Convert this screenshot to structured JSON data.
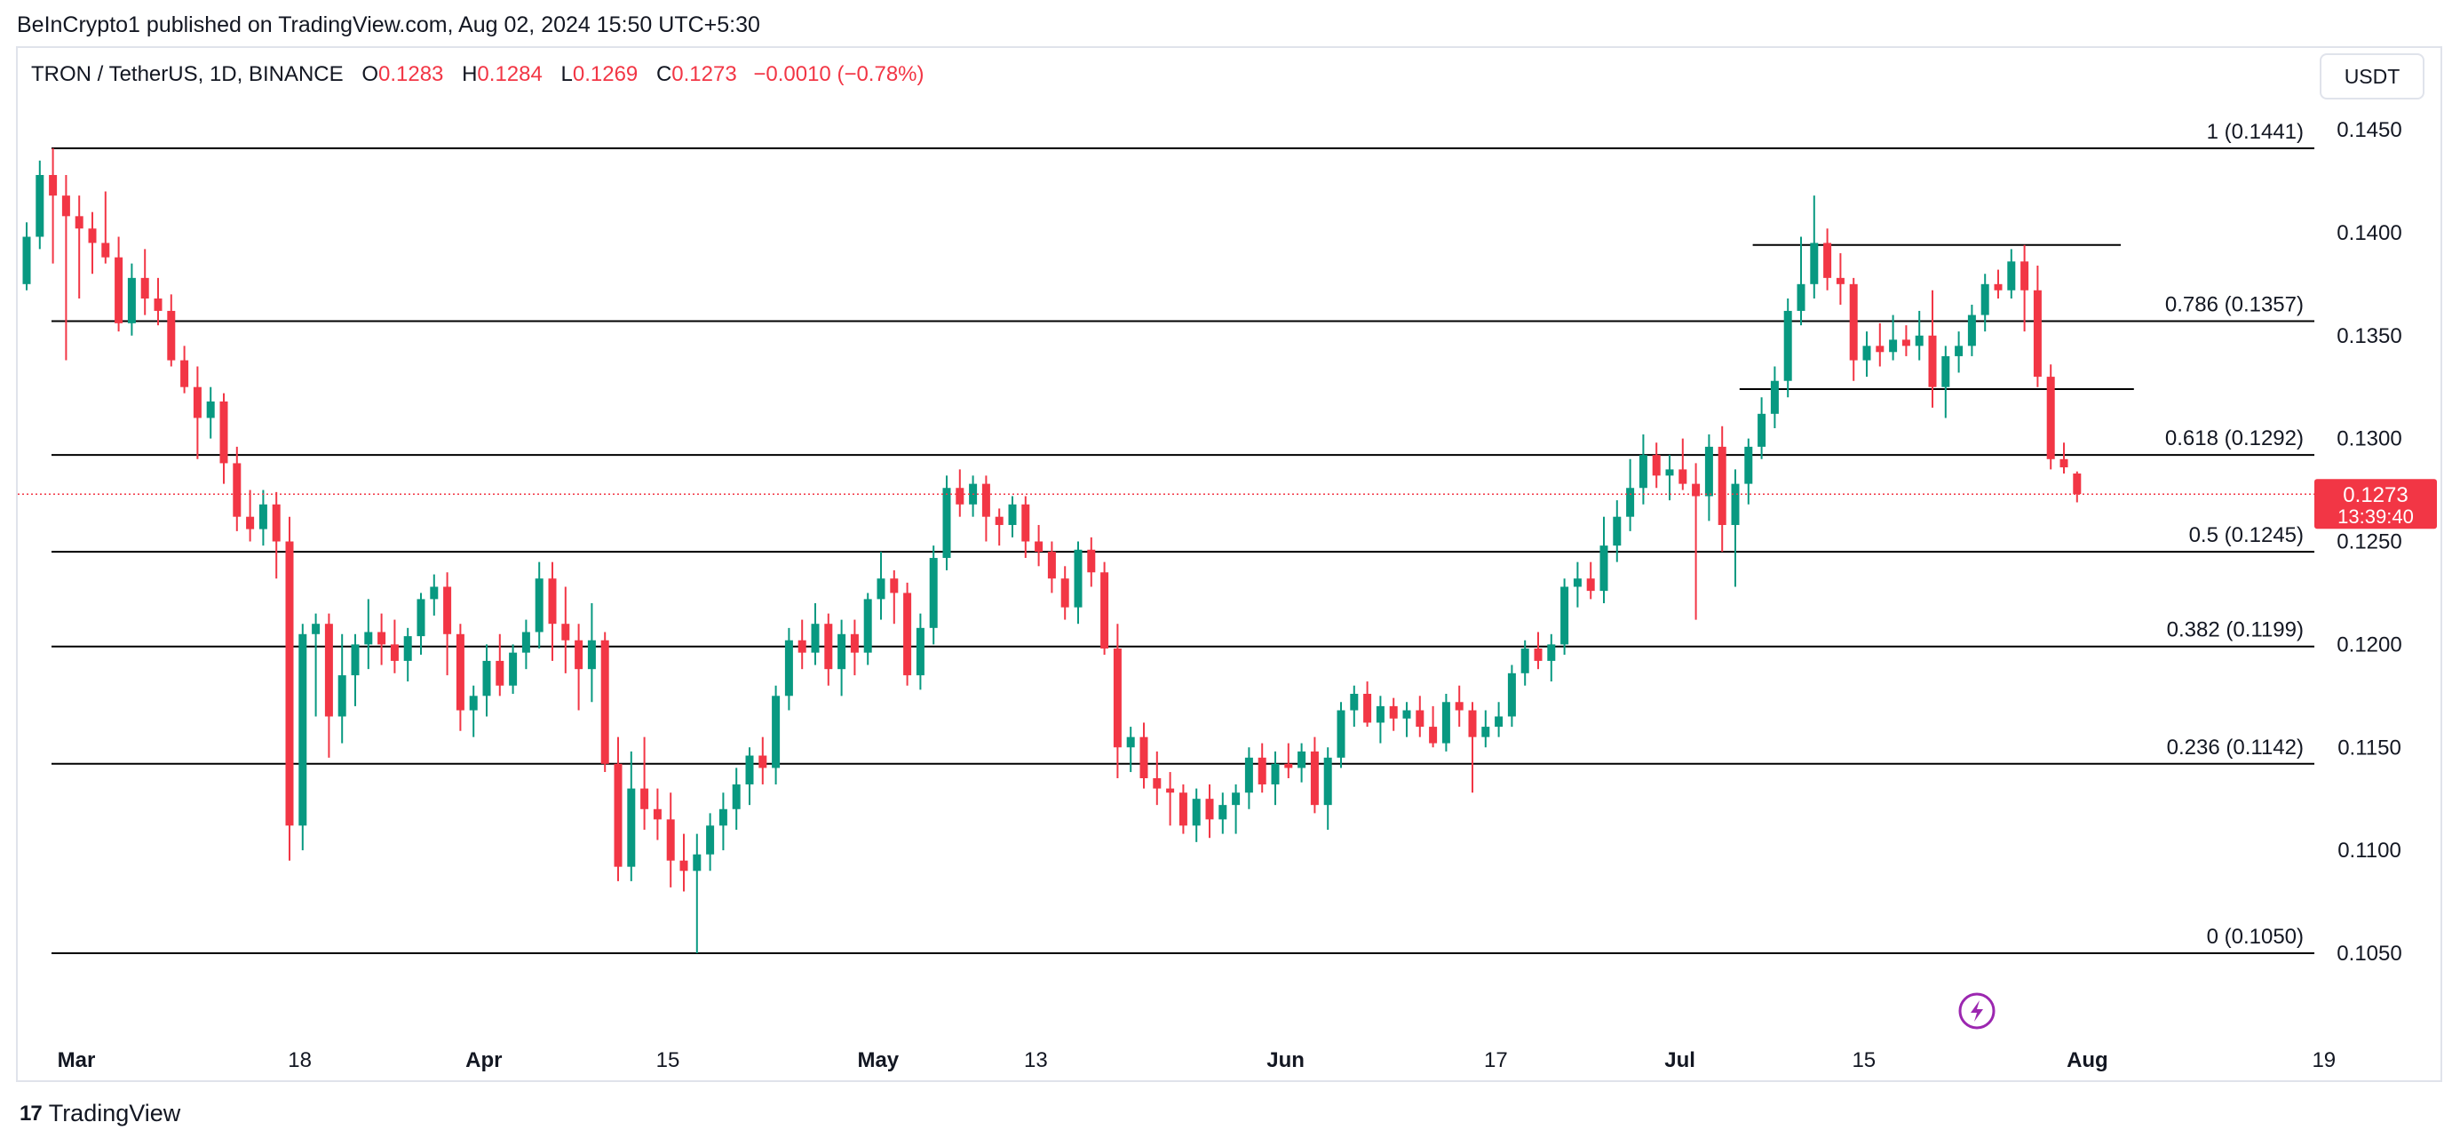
{
  "header": {
    "published_line": "BeInCrypto1 published on TradingView.com, Aug 02, 2024 15:50 UTC+5:30"
  },
  "legend": {
    "symbol": "TRON / TetherUS, 1D, BINANCE",
    "open_label": "O",
    "open": "0.1283",
    "high_label": "H",
    "high": "0.1284",
    "low_label": "L",
    "low": "0.1269",
    "close_label": "C",
    "close": "0.1273",
    "change": "−0.0010 (−0.78%)"
  },
  "currency_button": "USDT",
  "footer": {
    "brand": "TradingView",
    "logo_mark": "17"
  },
  "colors": {
    "up": "#089981",
    "down": "#f23645",
    "grid": "#000000",
    "axis_text": "#131722",
    "price_badge": "#f23645",
    "event_icon": "#9c27b0"
  },
  "chart_data": {
    "type": "candlestick",
    "title": "TRON / TetherUS, 1D, BINANCE",
    "ylim": [
      0.1,
      0.147
    ],
    "y_ticks": [
      "0.1450",
      "0.1400",
      "0.1350",
      "0.1300",
      "0.1250",
      "0.1200",
      "0.1150",
      "0.1100",
      "0.1050"
    ],
    "y_tick_values": [
      0.145,
      0.14,
      0.135,
      0.13,
      0.125,
      0.12,
      0.115,
      0.11,
      0.105
    ],
    "x_ticks": [
      {
        "label": "Mar",
        "day": 0,
        "bold": true
      },
      {
        "label": "18",
        "day": 17,
        "bold": false
      },
      {
        "label": "Apr",
        "day": 31,
        "bold": true
      },
      {
        "label": "15",
        "day": 45,
        "bold": false
      },
      {
        "label": "May",
        "day": 61,
        "bold": true
      },
      {
        "label": "13",
        "day": 73,
        "bold": false
      },
      {
        "label": "Jun",
        "day": 92,
        "bold": true
      },
      {
        "label": "17",
        "day": 108,
        "bold": false
      },
      {
        "label": "Jul",
        "day": 122,
        "bold": true
      },
      {
        "label": "15",
        "day": 136,
        "bold": false
      },
      {
        "label": "Aug",
        "day": 153,
        "bold": true
      },
      {
        "label": "19",
        "day": 171,
        "bold": false
      }
    ],
    "fib_levels": [
      {
        "label": "1 (0.1441)",
        "value": 0.1441
      },
      {
        "label": "0.786 (0.1357)",
        "value": 0.1357
      },
      {
        "label": "0.618 (0.1292)",
        "value": 0.1292
      },
      {
        "label": "0.5 (0.1245)",
        "value": 0.1245
      },
      {
        "label": "0.382 (0.1199)",
        "value": 0.1199
      },
      {
        "label": "0.236 (0.1142)",
        "value": 0.1142
      },
      {
        "label": "0 (0.1050)",
        "value": 0.105
      }
    ],
    "range_lines": [
      {
        "value": 0.1394,
        "start_day": 132,
        "end_day": 160
      },
      {
        "value": 0.1324,
        "start_day": 131,
        "end_day": 161
      }
    ],
    "last_price": {
      "value": 0.1273,
      "label": "0.1273",
      "countdown": "13:39:40"
    },
    "candles": [
      [
        0.1375,
        0.1405,
        0.1372,
        0.1398
      ],
      [
        0.1398,
        0.1435,
        0.1392,
        0.1428
      ],
      [
        0.1428,
        0.1441,
        0.1385,
        0.1418
      ],
      [
        0.1418,
        0.1428,
        0.1338,
        0.1408
      ],
      [
        0.1408,
        0.1418,
        0.1368,
        0.1402
      ],
      [
        0.1402,
        0.141,
        0.138,
        0.1395
      ],
      [
        0.1395,
        0.142,
        0.1385,
        0.1388
      ],
      [
        0.1388,
        0.1398,
        0.1352,
        0.1356
      ],
      [
        0.1356,
        0.1385,
        0.135,
        0.1378
      ],
      [
        0.1378,
        0.1392,
        0.136,
        0.1368
      ],
      [
        0.1368,
        0.1378,
        0.1355,
        0.1362
      ],
      [
        0.1362,
        0.137,
        0.1335,
        0.1338
      ],
      [
        0.1338,
        0.1345,
        0.1322,
        0.1325
      ],
      [
        0.1325,
        0.1335,
        0.129,
        0.131
      ],
      [
        0.131,
        0.1325,
        0.13,
        0.1318
      ],
      [
        0.1318,
        0.1322,
        0.1278,
        0.1288
      ],
      [
        0.1288,
        0.1296,
        0.1255,
        0.1262
      ],
      [
        0.1262,
        0.1275,
        0.125,
        0.1256
      ],
      [
        0.1256,
        0.1275,
        0.1248,
        0.1268
      ],
      [
        0.1268,
        0.1274,
        0.1232,
        0.125
      ],
      [
        0.125,
        0.1262,
        0.1095,
        0.1112
      ],
      [
        0.1112,
        0.121,
        0.11,
        0.1205
      ],
      [
        0.1205,
        0.1215,
        0.1165,
        0.121
      ],
      [
        0.121,
        0.1215,
        0.1145,
        0.1165
      ],
      [
        0.1165,
        0.1205,
        0.1152,
        0.1185
      ],
      [
        0.1185,
        0.1205,
        0.117,
        0.12
      ],
      [
        0.12,
        0.1222,
        0.1188,
        0.1206
      ],
      [
        0.1206,
        0.1215,
        0.119,
        0.12
      ],
      [
        0.12,
        0.1212,
        0.1186,
        0.1192
      ],
      [
        0.1192,
        0.1208,
        0.1182,
        0.1204
      ],
      [
        0.1204,
        0.1225,
        0.1195,
        0.1222
      ],
      [
        0.1222,
        0.1234,
        0.1214,
        0.1228
      ],
      [
        0.1228,
        0.1235,
        0.1185,
        0.1205
      ],
      [
        0.1205,
        0.121,
        0.1158,
        0.1168
      ],
      [
        0.1168,
        0.118,
        0.1155,
        0.1175
      ],
      [
        0.1175,
        0.12,
        0.1165,
        0.1192
      ],
      [
        0.1192,
        0.1205,
        0.1175,
        0.118
      ],
      [
        0.118,
        0.12,
        0.1176,
        0.1196
      ],
      [
        0.1196,
        0.1212,
        0.1188,
        0.1206
      ],
      [
        0.1206,
        0.124,
        0.1198,
        0.1232
      ],
      [
        0.1232,
        0.124,
        0.1192,
        0.121
      ],
      [
        0.121,
        0.1228,
        0.1186,
        0.1202
      ],
      [
        0.1202,
        0.121,
        0.1168,
        0.1188
      ],
      [
        0.1188,
        0.122,
        0.1172,
        0.1202
      ],
      [
        0.1202,
        0.1206,
        0.1138,
        0.1142
      ],
      [
        0.1142,
        0.1155,
        0.1085,
        0.1092
      ],
      [
        0.1092,
        0.1148,
        0.1085,
        0.113
      ],
      [
        0.113,
        0.1155,
        0.111,
        0.112
      ],
      [
        0.112,
        0.113,
        0.1105,
        0.1115
      ],
      [
        0.1115,
        0.1128,
        0.1082,
        0.1095
      ],
      [
        0.1095,
        0.1108,
        0.108,
        0.109
      ],
      [
        0.109,
        0.1108,
        0.105,
        0.1098
      ],
      [
        0.1098,
        0.1118,
        0.109,
        0.1112
      ],
      [
        0.1112,
        0.1128,
        0.11,
        0.112
      ],
      [
        0.112,
        0.114,
        0.111,
        0.1132
      ],
      [
        0.1132,
        0.115,
        0.1122,
        0.1146
      ],
      [
        0.1146,
        0.1155,
        0.1132,
        0.114
      ],
      [
        0.114,
        0.118,
        0.1132,
        0.1175
      ],
      [
        0.1175,
        0.1208,
        0.1168,
        0.1202
      ],
      [
        0.1202,
        0.1212,
        0.1188,
        0.1196
      ],
      [
        0.1196,
        0.122,
        0.119,
        0.121
      ],
      [
        0.121,
        0.1215,
        0.118,
        0.1188
      ],
      [
        0.1188,
        0.1212,
        0.1175,
        0.1205
      ],
      [
        0.1205,
        0.1212,
        0.1185,
        0.1196
      ],
      [
        0.1196,
        0.1225,
        0.119,
        0.1222
      ],
      [
        0.1222,
        0.1245,
        0.1212,
        0.1232
      ],
      [
        0.1232,
        0.1236,
        0.121,
        0.1225
      ],
      [
        0.1225,
        0.123,
        0.118,
        0.1185
      ],
      [
        0.1185,
        0.1215,
        0.1178,
        0.1208
      ],
      [
        0.1208,
        0.1248,
        0.12,
        0.1242
      ],
      [
        0.1242,
        0.1282,
        0.1236,
        0.1276
      ],
      [
        0.1276,
        0.1285,
        0.1262,
        0.1268
      ],
      [
        0.1268,
        0.1282,
        0.1262,
        0.1278
      ],
      [
        0.1278,
        0.1282,
        0.125,
        0.1262
      ],
      [
        0.1262,
        0.1266,
        0.1248,
        0.1258
      ],
      [
        0.1258,
        0.1272,
        0.1252,
        0.1268
      ],
      [
        0.1268,
        0.1272,
        0.1242,
        0.125
      ],
      [
        0.125,
        0.1258,
        0.1238,
        0.1245
      ],
      [
        0.1245,
        0.125,
        0.1225,
        0.1232
      ],
      [
        0.1232,
        0.1238,
        0.1212,
        0.1218
      ],
      [
        0.1218,
        0.125,
        0.121,
        0.1246
      ],
      [
        0.1246,
        0.1252,
        0.1228,
        0.1235
      ],
      [
        0.1235,
        0.124,
        0.1195,
        0.1198
      ],
      [
        0.1198,
        0.121,
        0.1135,
        0.115
      ],
      [
        0.115,
        0.116,
        0.1138,
        0.1155
      ],
      [
        0.1155,
        0.1162,
        0.113,
        0.1135
      ],
      [
        0.1135,
        0.1148,
        0.1122,
        0.113
      ],
      [
        0.113,
        0.1138,
        0.1112,
        0.1128
      ],
      [
        0.1128,
        0.1132,
        0.1108,
        0.1112
      ],
      [
        0.1112,
        0.113,
        0.1104,
        0.1125
      ],
      [
        0.1125,
        0.1132,
        0.1106,
        0.1115
      ],
      [
        0.1115,
        0.1128,
        0.1108,
        0.1122
      ],
      [
        0.1122,
        0.1132,
        0.1108,
        0.1128
      ],
      [
        0.1128,
        0.115,
        0.112,
        0.1145
      ],
      [
        0.1145,
        0.1152,
        0.1128,
        0.1132
      ],
      [
        0.1132,
        0.1148,
        0.1122,
        0.1142
      ],
      [
        0.1142,
        0.1152,
        0.1135,
        0.114
      ],
      [
        0.114,
        0.1152,
        0.1133,
        0.1148
      ],
      [
        0.1148,
        0.1155,
        0.1118,
        0.1122
      ],
      [
        0.1122,
        0.115,
        0.111,
        0.1145
      ],
      [
        0.1145,
        0.1172,
        0.114,
        0.1168
      ],
      [
        0.1168,
        0.118,
        0.116,
        0.1176
      ],
      [
        0.1176,
        0.1182,
        0.116,
        0.1162
      ],
      [
        0.1162,
        0.1175,
        0.1152,
        0.117
      ],
      [
        0.117,
        0.1174,
        0.1158,
        0.1164
      ],
      [
        0.1164,
        0.1172,
        0.1155,
        0.1168
      ],
      [
        0.1168,
        0.1175,
        0.1155,
        0.116
      ],
      [
        0.116,
        0.117,
        0.115,
        0.1152
      ],
      [
        0.1152,
        0.1176,
        0.1148,
        0.1172
      ],
      [
        0.1172,
        0.118,
        0.116,
        0.1168
      ],
      [
        0.1168,
        0.1172,
        0.1128,
        0.1155
      ],
      [
        0.1155,
        0.1168,
        0.115,
        0.116
      ],
      [
        0.116,
        0.1172,
        0.1155,
        0.1165
      ],
      [
        0.1165,
        0.119,
        0.116,
        0.1186
      ],
      [
        0.1186,
        0.1202,
        0.118,
        0.1198
      ],
      [
        0.1198,
        0.1206,
        0.1188,
        0.1192
      ],
      [
        0.1192,
        0.1205,
        0.1182,
        0.12
      ],
      [
        0.12,
        0.1232,
        0.1195,
        0.1228
      ],
      [
        0.1228,
        0.124,
        0.1218,
        0.1232
      ],
      [
        0.1232,
        0.124,
        0.1222,
        0.1226
      ],
      [
        0.1226,
        0.1262,
        0.122,
        0.1248
      ],
      [
        0.1248,
        0.127,
        0.124,
        0.1262
      ],
      [
        0.1262,
        0.129,
        0.1255,
        0.1276
      ],
      [
        0.1276,
        0.1302,
        0.1268,
        0.1292
      ],
      [
        0.1292,
        0.1298,
        0.1276,
        0.1282
      ],
      [
        0.1282,
        0.1292,
        0.127,
        0.1285
      ],
      [
        0.1285,
        0.13,
        0.1275,
        0.1278
      ],
      [
        0.1278,
        0.1288,
        0.1212,
        0.1272
      ],
      [
        0.1272,
        0.1302,
        0.126,
        0.1296
      ],
      [
        0.1296,
        0.1306,
        0.1245,
        0.1258
      ],
      [
        0.1258,
        0.1285,
        0.1228,
        0.1278
      ],
      [
        0.1278,
        0.13,
        0.1268,
        0.1296
      ],
      [
        0.1296,
        0.132,
        0.129,
        0.1312
      ],
      [
        0.1312,
        0.1335,
        0.1305,
        0.1328
      ],
      [
        0.1328,
        0.1368,
        0.132,
        0.1362
      ],
      [
        0.1362,
        0.1398,
        0.1355,
        0.1375
      ],
      [
        0.1375,
        0.1418,
        0.1368,
        0.1395
      ],
      [
        0.1395,
        0.1402,
        0.1372,
        0.1378
      ],
      [
        0.1378,
        0.139,
        0.1365,
        0.1375
      ],
      [
        0.1375,
        0.1378,
        0.1328,
        0.1338
      ],
      [
        0.1338,
        0.1352,
        0.133,
        0.1345
      ],
      [
        0.1345,
        0.1356,
        0.1335,
        0.1342
      ],
      [
        0.1342,
        0.136,
        0.1338,
        0.1348
      ],
      [
        0.1348,
        0.1355,
        0.134,
        0.1345
      ],
      [
        0.1345,
        0.1362,
        0.1338,
        0.135
      ],
      [
        0.135,
        0.1372,
        0.1315,
        0.1325
      ],
      [
        0.1325,
        0.1345,
        0.131,
        0.134
      ],
      [
        0.134,
        0.1352,
        0.1332,
        0.1345
      ],
      [
        0.1345,
        0.1365,
        0.134,
        0.136
      ],
      [
        0.136,
        0.138,
        0.1352,
        0.1375
      ],
      [
        0.1375,
        0.1382,
        0.1368,
        0.1372
      ],
      [
        0.1372,
        0.1392,
        0.1368,
        0.1386
      ],
      [
        0.1386,
        0.1394,
        0.1352,
        0.1372
      ],
      [
        0.1372,
        0.1384,
        0.1325,
        0.133
      ],
      [
        0.133,
        0.1336,
        0.1285,
        0.129
      ],
      [
        0.129,
        0.1298,
        0.1283,
        0.1286
      ],
      [
        0.1283,
        0.1284,
        0.1269,
        0.1273
      ]
    ]
  }
}
